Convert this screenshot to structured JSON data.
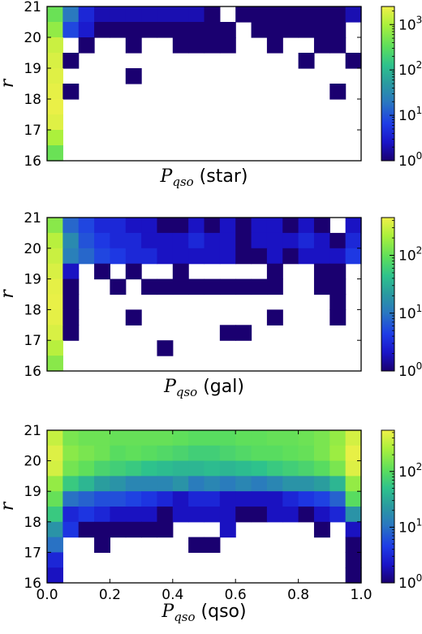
{
  "chart_data": [
    {
      "type": "heatmap",
      "ylabel": "r",
      "xlabel_symbol": "P",
      "xlabel_subscript": "qso",
      "xlabel_suffix": "(star)",
      "x_range": [
        0.0,
        1.0
      ],
      "y_range": [
        16,
        21
      ],
      "y_ticks": [
        "16",
        "17",
        "18",
        "19",
        "20",
        "21"
      ],
      "x_ticks": [],
      "colorbar": {
        "scale": "log",
        "range": [
          1,
          2500
        ],
        "tick_base": [
          "10",
          "10",
          "10",
          "10"
        ],
        "tick_exp": [
          "0",
          "1",
          "2",
          "3"
        ],
        "tick_values": [
          1,
          10,
          100,
          1000
        ]
      },
      "x_bins": 20,
      "y_bins": 10,
      "rows_top_to_bottom": [
        [
          400,
          20,
          4,
          2,
          2,
          2,
          2,
          2,
          2,
          2,
          1,
          0,
          1,
          1,
          1,
          1,
          1,
          1,
          1,
          2
        ],
        [
          700,
          8,
          3,
          1,
          1,
          1,
          1,
          1,
          1,
          1,
          1,
          1,
          0,
          1,
          1,
          1,
          1,
          1,
          1,
          0
        ],
        [
          1500,
          0,
          1,
          0,
          0,
          1,
          0,
          0,
          1,
          1,
          1,
          1,
          0,
          0,
          1,
          0,
          0,
          1,
          1,
          0
        ],
        [
          1800,
          1,
          0,
          0,
          0,
          0,
          0,
          0,
          0,
          0,
          0,
          0,
          0,
          0,
          0,
          0,
          1,
          0,
          0,
          1
        ],
        [
          2000,
          0,
          0,
          0,
          0,
          1,
          0,
          0,
          0,
          0,
          0,
          0,
          0,
          0,
          0,
          0,
          0,
          0,
          0,
          0
        ],
        [
          2200,
          1,
          0,
          0,
          0,
          0,
          0,
          0,
          0,
          0,
          0,
          0,
          0,
          0,
          0,
          0,
          0,
          0,
          1,
          0
        ],
        [
          2300,
          0,
          0,
          0,
          0,
          0,
          0,
          0,
          0,
          0,
          0,
          0,
          0,
          0,
          0,
          0,
          0,
          0,
          0,
          0
        ],
        [
          2000,
          0,
          0,
          0,
          0,
          0,
          0,
          0,
          0,
          0,
          0,
          0,
          0,
          0,
          0,
          0,
          0,
          0,
          0,
          0
        ],
        [
          1000,
          0,
          0,
          0,
          0,
          0,
          0,
          0,
          0,
          0,
          0,
          0,
          0,
          0,
          0,
          0,
          0,
          0,
          0,
          0
        ],
        [
          400,
          0,
          0,
          0,
          0,
          0,
          0,
          0,
          0,
          0,
          0,
          0,
          0,
          0,
          0,
          0,
          0,
          0,
          0,
          0
        ]
      ]
    },
    {
      "type": "heatmap",
      "ylabel": "r",
      "xlabel_symbol": "P",
      "xlabel_subscript": "qso",
      "xlabel_suffix": "(gal)",
      "x_range": [
        0.0,
        1.0
      ],
      "y_range": [
        16,
        21
      ],
      "y_ticks": [
        "16",
        "17",
        "18",
        "19",
        "20",
        "21"
      ],
      "x_ticks": [],
      "colorbar": {
        "scale": "log",
        "range": [
          1,
          450
        ],
        "tick_base": [
          "10",
          "10",
          "10"
        ],
        "tick_exp": [
          "0",
          "1",
          "2"
        ],
        "tick_values": [
          1,
          10,
          100
        ]
      },
      "x_bins": 20,
      "y_bins": 10,
      "rows_top_to_bottom": [
        [
          150,
          8,
          5,
          3,
          3,
          2,
          2,
          1,
          1,
          2,
          1,
          2,
          1,
          2,
          2,
          1,
          2,
          1,
          0,
          2
        ],
        [
          250,
          15,
          6,
          4,
          3,
          3,
          2,
          2,
          2,
          3,
          2,
          2,
          1,
          2,
          2,
          2,
          3,
          2,
          1,
          3
        ],
        [
          300,
          12,
          8,
          5,
          4,
          3,
          3,
          2,
          2,
          2,
          2,
          2,
          1,
          1,
          2,
          1,
          2,
          2,
          2,
          4
        ],
        [
          350,
          2,
          0,
          1,
          0,
          1,
          0,
          0,
          1,
          0,
          0,
          0,
          0,
          0,
          1,
          0,
          0,
          1,
          1,
          0
        ],
        [
          400,
          1,
          0,
          0,
          1,
          0,
          1,
          1,
          1,
          1,
          1,
          1,
          1,
          1,
          1,
          0,
          0,
          1,
          1,
          0
        ],
        [
          420,
          1,
          0,
          0,
          0,
          0,
          0,
          0,
          0,
          0,
          0,
          0,
          0,
          0,
          0,
          0,
          0,
          0,
          1,
          0
        ],
        [
          400,
          1,
          0,
          0,
          0,
          1,
          0,
          0,
          0,
          0,
          0,
          0,
          0,
          0,
          1,
          0,
          0,
          0,
          1,
          0
        ],
        [
          350,
          1,
          0,
          0,
          0,
          0,
          0,
          0,
          0,
          0,
          0,
          1,
          1,
          0,
          0,
          0,
          0,
          0,
          0,
          0
        ],
        [
          250,
          0,
          0,
          0,
          0,
          0,
          0,
          1,
          0,
          0,
          0,
          0,
          0,
          0,
          0,
          0,
          0,
          0,
          0,
          0
        ],
        [
          150,
          0,
          0,
          0,
          0,
          0,
          0,
          0,
          0,
          0,
          0,
          0,
          0,
          0,
          0,
          0,
          0,
          0,
          0,
          0
        ]
      ]
    },
    {
      "type": "heatmap",
      "ylabel": "r",
      "xlabel_symbol": "P",
      "xlabel_subscript": "qso",
      "xlabel_suffix": "(qso)",
      "x_range": [
        0.0,
        1.0
      ],
      "y_range": [
        16,
        21
      ],
      "y_ticks": [
        "16",
        "17",
        "18",
        "19",
        "20",
        "21"
      ],
      "x_ticks": [
        "0.0",
        "0.2",
        "0.4",
        "0.6",
        "0.8",
        "1.0"
      ],
      "colorbar": {
        "scale": "log",
        "range": [
          1,
          550
        ],
        "tick_base": [
          "10",
          "10",
          "10"
        ],
        "tick_exp": [
          "0",
          "1",
          "2"
        ],
        "tick_values": [
          1,
          10,
          100
        ]
      },
      "x_bins": 20,
      "y_bins": 10,
      "rows_top_to_bottom": [
        [
          350,
          150,
          130,
          130,
          120,
          120,
          120,
          120,
          110,
          100,
          100,
          100,
          110,
          110,
          120,
          120,
          130,
          150,
          200,
          400
        ],
        [
          450,
          180,
          150,
          130,
          100,
          110,
          100,
          90,
          80,
          70,
          70,
          80,
          90,
          100,
          100,
          110,
          120,
          150,
          220,
          500
        ],
        [
          400,
          140,
          110,
          80,
          70,
          60,
          50,
          45,
          40,
          40,
          45,
          40,
          45,
          50,
          60,
          70,
          80,
          100,
          150,
          450
        ],
        [
          200,
          60,
          40,
          25,
          20,
          15,
          15,
          15,
          20,
          12,
          15,
          12,
          15,
          12,
          15,
          20,
          20,
          25,
          40,
          200
        ],
        [
          120,
          10,
          8,
          6,
          6,
          5,
          4,
          3,
          2,
          3,
          3,
          2,
          2,
          2,
          2,
          3,
          4,
          5,
          8,
          100
        ],
        [
          60,
          3,
          4,
          3,
          2,
          2,
          2,
          1,
          2,
          2,
          2,
          2,
          1,
          1,
          2,
          2,
          1,
          2,
          3,
          20
        ],
        [
          20,
          4,
          1,
          1,
          1,
          1,
          1,
          1,
          0,
          0,
          0,
          2,
          0,
          0,
          0,
          0,
          0,
          1,
          0,
          2
        ],
        [
          10,
          0,
          0,
          1,
          0,
          0,
          0,
          0,
          0,
          1,
          1,
          0,
          0,
          0,
          0,
          0,
          0,
          0,
          0,
          1
        ],
        [
          3,
          0,
          0,
          0,
          0,
          0,
          0,
          0,
          0,
          0,
          0,
          0,
          0,
          0,
          0,
          0,
          0,
          0,
          0,
          1
        ],
        [
          2,
          0,
          0,
          0,
          0,
          0,
          0,
          0,
          0,
          0,
          0,
          0,
          0,
          0,
          0,
          0,
          0,
          0,
          0,
          1
        ]
      ]
    }
  ]
}
